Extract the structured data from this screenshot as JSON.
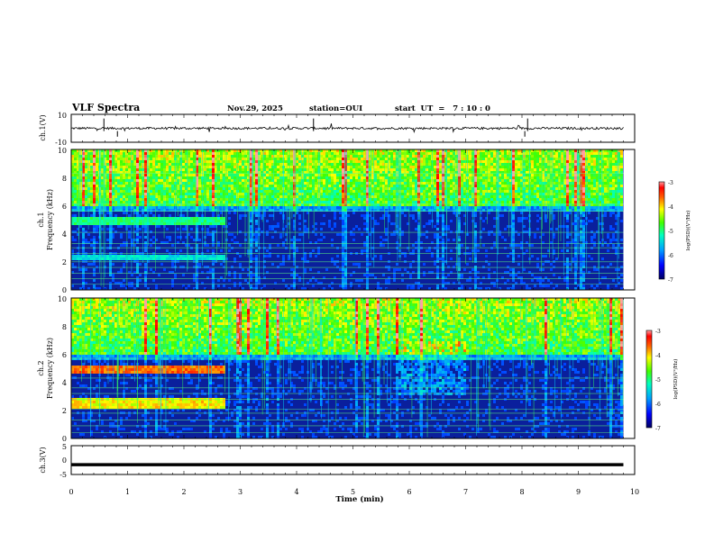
{
  "header": {
    "title": "VLF Spectra",
    "date": "Nov.29, 2025",
    "station": "station=OUI",
    "start": "start  UT  =   7 : 10 : 0"
  },
  "colors": {
    "spectrogram_scale": [
      "#000060",
      "#0000ff",
      "#0080ff",
      "#00ffff",
      "#00ff00",
      "#ffff00",
      "#ff8000",
      "#ff0000",
      "#ff8080"
    ],
    "background": "#ffffff",
    "trace": "#000000"
  },
  "chart_data": [
    {
      "type": "line",
      "name": "ch1-waveform",
      "ylabel": "ch.1(V)",
      "ylim": [
        -10,
        10
      ],
      "yticks": [
        "10",
        "-10"
      ],
      "baseline": 0,
      "xlim": [
        0,
        10
      ],
      "data_end": 9.8
    },
    {
      "type": "heatmap",
      "name": "ch1-spectrogram",
      "channel": "ch.1",
      "ylabel": "Frequency (kHz)",
      "ylim": [
        0,
        10
      ],
      "yticks": [
        "0",
        "2",
        "4",
        "6",
        "8",
        "10"
      ],
      "xlim": [
        0,
        10
      ],
      "data_end": 9.8,
      "colorbar": {
        "label": "log(PSD)(V²/Hz)",
        "range": [
          -7,
          -3
        ],
        "ticks": [
          "-3",
          "-4",
          "-5",
          "-6",
          "-7"
        ]
      }
    },
    {
      "type": "heatmap",
      "name": "ch2-spectrogram",
      "channel": "ch.2",
      "ylabel": "Frequency (kHz)",
      "ylim": [
        0,
        10
      ],
      "yticks": [
        "0",
        "2",
        "4",
        "6",
        "8",
        "10"
      ],
      "xlim": [
        0,
        10
      ],
      "data_end": 9.8,
      "colorbar": {
        "label": "log(PSD)(V²/Hz)",
        "range": [
          -7,
          -3
        ],
        "ticks": [
          "-3",
          "-4",
          "-5",
          "-6",
          "-7"
        ]
      }
    },
    {
      "type": "line",
      "name": "ch3-waveform",
      "ylabel": "ch.3(V)",
      "ylim": [
        -5,
        5
      ],
      "yticks": [
        "5",
        "0",
        "-5"
      ],
      "baseline": -1.6,
      "xlim": [
        0,
        10
      ],
      "data_end": 9.8
    }
  ],
  "x_axis": {
    "label": "Time (min)",
    "ticks": [
      "0",
      "1",
      "2",
      "3",
      "4",
      "5",
      "6",
      "7",
      "8",
      "9",
      "10"
    ]
  }
}
